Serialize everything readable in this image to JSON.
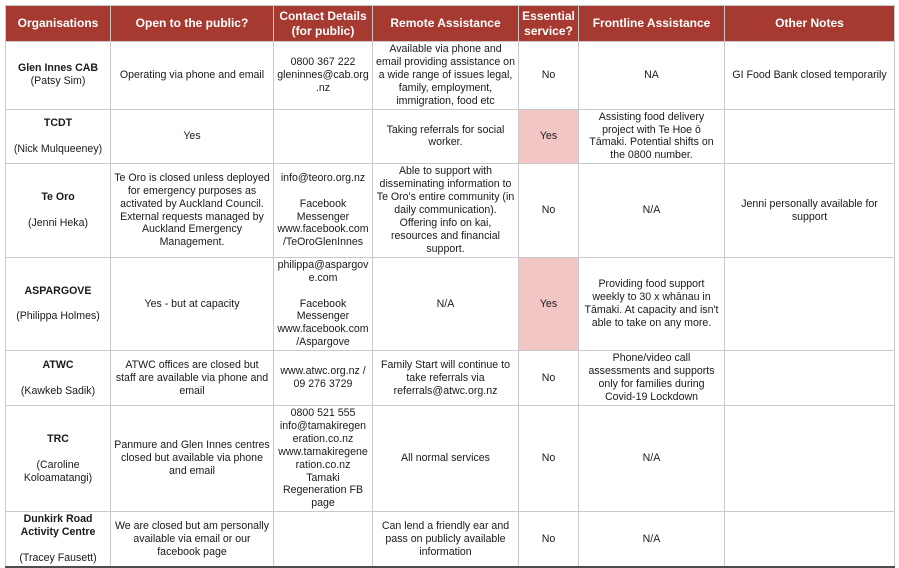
{
  "colors": {
    "header_bg": "#A63930",
    "header_text": "#FFFFFF",
    "essential_yes_highlight": "#F2C6C5",
    "grid_border": "#C9C9C9",
    "body_text": "#1A1A1A"
  },
  "table": {
    "columns": [
      {
        "key": "organisations",
        "label": "Organisations"
      },
      {
        "key": "open",
        "label": "Open to the public?"
      },
      {
        "key": "contact",
        "label": "Contact Details (for public)"
      },
      {
        "key": "remote",
        "label": "Remote Assistance"
      },
      {
        "key": "essential",
        "label": "Essential service?"
      },
      {
        "key": "frontline",
        "label": "Frontline Assistance"
      },
      {
        "key": "notes",
        "label": "Other Notes"
      }
    ],
    "rows": [
      {
        "org_name": "Glen Innes CAB",
        "org_person": "(Patsy Sim)",
        "org_spacer": false,
        "open": "Operating via phone and email",
        "contact": "0800 367 222\ngleninnes@cab.org.nz",
        "remote": "Available via phone and email providing assistance on a wide range of issues legal, family, employment, immigration, food etc",
        "essential": {
          "value": "No",
          "highlight": false
        },
        "frontline": "NA",
        "notes": "GI Food Bank closed temporarily"
      },
      {
        "org_name": "TCDT",
        "org_person": "(Nick Mulqueeney)",
        "org_spacer": true,
        "open": "Yes",
        "contact": "",
        "remote": "Taking referrals for social worker.",
        "essential": {
          "value": "Yes",
          "highlight": true
        },
        "frontline": "Assisting food delivery project with Te Hoe ō Tāmaki. Potential shifts on the 0800 number.",
        "notes": ""
      },
      {
        "org_name": "Te Oro",
        "org_person": "(Jenni Heka)",
        "org_spacer": true,
        "open": "Te Oro is closed unless deployed for emergency purposes as activated by Auckland Council. External requests managed by Auckland Emergency Management.",
        "contact": "info@teoro.org.nz\n\nFacebook Messenger\nwww.facebook.com/TeOroGlenInnes",
        "remote": "Able to support with disseminating information to Te Oro's entire community (in daily communication). Offering info on kai, resources and financial support.",
        "essential": {
          "value": "No",
          "highlight": false
        },
        "frontline": "N/A",
        "notes": "Jenni personally available for support"
      },
      {
        "org_name": "ASPARGOVE",
        "org_person": "(Philippa Holmes)",
        "org_spacer": true,
        "open": "Yes - but at capacity",
        "contact": "philippa@aspargove.com\n\nFacebook Messenger\nwww.facebook.com/Aspargove",
        "remote": "N/A",
        "essential": {
          "value": "Yes",
          "highlight": true
        },
        "frontline": "Providing food support weekly to 30 x whānau in Tāmaki. At capacity and isn't able to take on any more.",
        "notes": ""
      },
      {
        "org_name": "ATWC",
        "org_person": "(Kawkeb Sadik)",
        "org_spacer": true,
        "open": "ATWC offices are closed but staff are available via phone and email",
        "contact": "www.atwc.org.nz / 09 276 3729",
        "remote": "Family Start will continue to take referrals via referrals@atwc.org.nz",
        "essential": {
          "value": "No",
          "highlight": false
        },
        "frontline": "Phone/video call assessments and supports only for families during Covid-19 Lockdown",
        "notes": ""
      },
      {
        "org_name": "TRC",
        "org_person": "(Caroline Koloamatangi)",
        "org_spacer": true,
        "open": "Panmure and Glen Innes centres closed but available via phone and email",
        "contact": "0800 521 555\ninfo@tamakiregeneration.co.nz\nwww.tamakiregeneration.co.nz\nTamaki Regeneration FB page",
        "remote": "All normal services",
        "essential": {
          "value": "No",
          "highlight": false
        },
        "frontline": "N/A",
        "notes": ""
      },
      {
        "org_name": "Dunkirk Road Activity Centre",
        "org_person": "(Tracey Fausett)",
        "org_spacer": true,
        "open": "We are closed but am personally available via email or our facebook page",
        "contact": "",
        "remote": "Can lend a friendly ear and pass on publicly available information",
        "essential": {
          "value": "No",
          "highlight": false
        },
        "frontline": "N/A",
        "notes": ""
      }
    ]
  }
}
